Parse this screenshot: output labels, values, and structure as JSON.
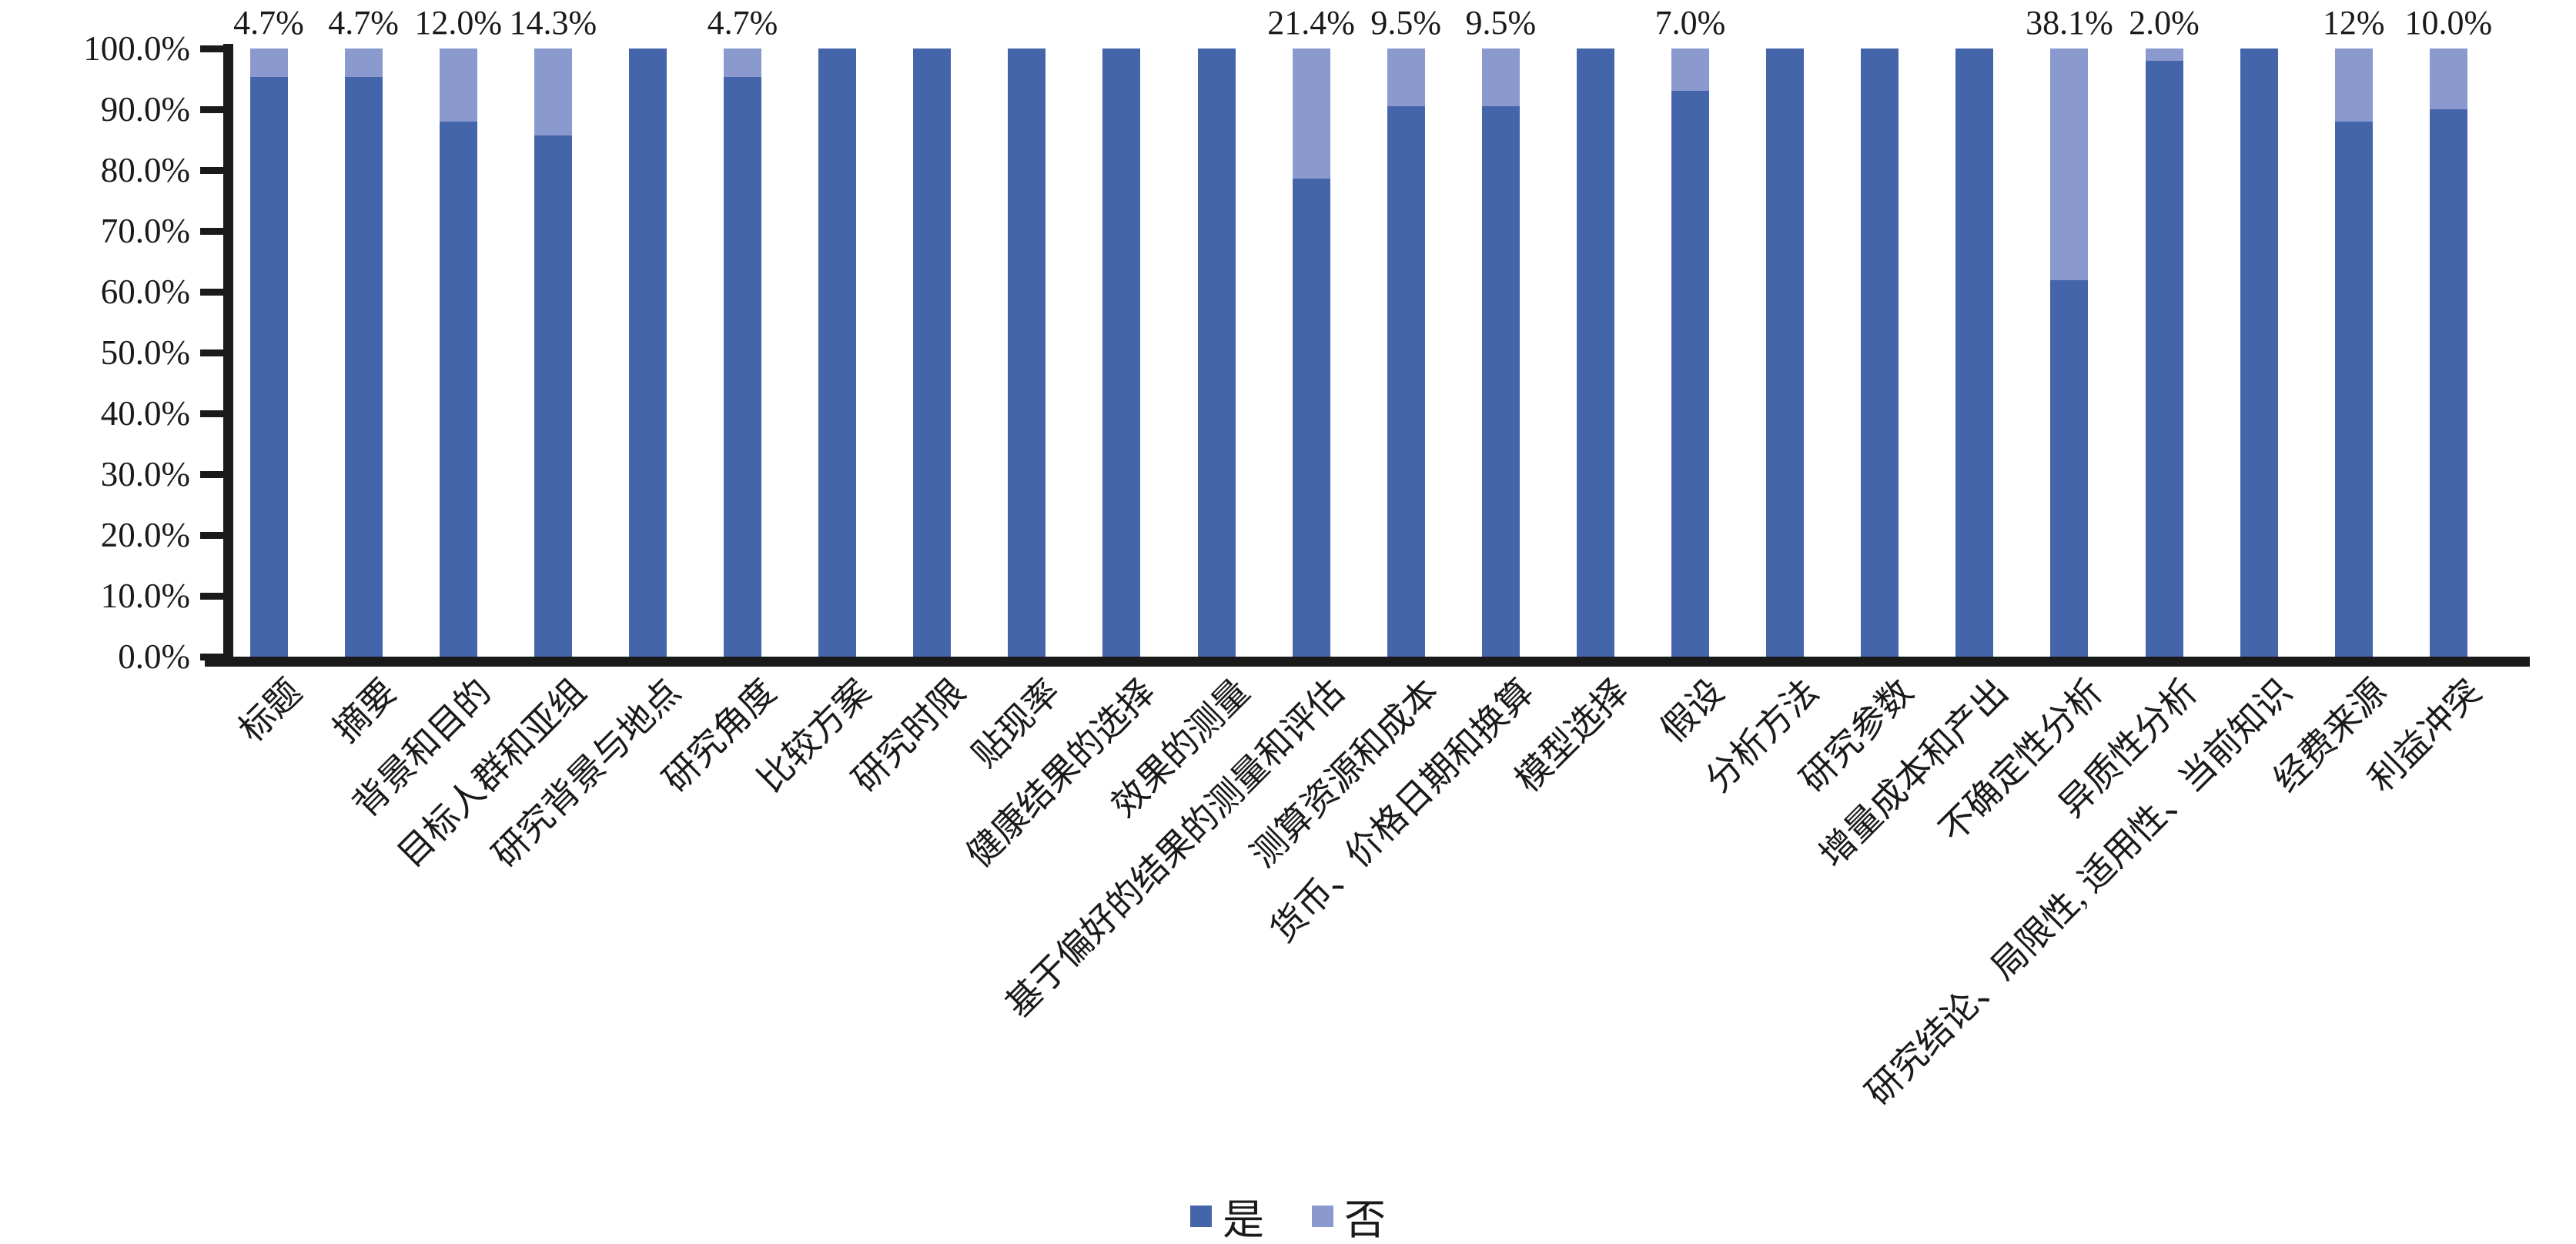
{
  "chart_data": {
    "type": "bar",
    "subtype": "stacked-100-percent-column",
    "title": "",
    "xlabel": "",
    "ylabel": "",
    "ylim": [
      0,
      100
    ],
    "grid": false,
    "legend_position": "bottom-center",
    "categories": [
      "标题",
      "摘要",
      "背景和目的",
      "目标人群和亚组",
      "研究背景与地点",
      "研究角度",
      "比较方案",
      "研究时限",
      "贴现率",
      "健康结果的选择",
      "效果的测量",
      "基于偏好的结果的测量和评估",
      "测算资源和成本",
      "货币、价格日期和换算",
      "模型选择",
      "假设",
      "分析方法",
      "研究参数",
      "增量成本和产出",
      "不确定性分析",
      "异质性分析",
      "研究结论、局限性, 适用性、当前知识",
      "经费来源",
      "利益冲突"
    ],
    "series": [
      {
        "name": "是",
        "color": "#4565AB",
        "values": [
          95.3,
          95.3,
          88.0,
          85.7,
          100,
          95.3,
          100,
          100,
          100,
          100,
          100,
          78.6,
          90.5,
          90.5,
          100,
          93.0,
          100,
          100,
          100,
          61.9,
          98.0,
          100,
          88.0,
          90.0
        ]
      },
      {
        "name": "否",
        "color": "#8A99CE",
        "values": [
          4.7,
          4.7,
          12.0,
          14.3,
          0,
          4.7,
          0,
          0,
          0,
          0,
          0,
          21.4,
          9.5,
          9.5,
          0,
          7.0,
          0,
          0,
          0,
          38.1,
          2.0,
          0,
          12.0,
          10.0
        ]
      }
    ],
    "bar_top_labels": [
      "4.7%",
      "4.7%",
      "12.0%",
      "14.3%",
      "",
      "4.7%",
      "",
      "",
      "",
      "",
      "",
      "21.4%",
      "9.5%",
      "9.5%",
      "",
      "7.0%",
      "",
      "",
      "",
      "38.1%",
      "2.0%",
      "",
      "12%",
      "10.0%"
    ],
    "y_axis_ticks": [
      "100.0%",
      "90.0%",
      "80.0%",
      "70.0%",
      "60.0%",
      "50.0%",
      "40.0%",
      "30.0%",
      "20.0%",
      "10.0%",
      "0.0%"
    ],
    "legend": {
      "items": [
        {
          "label": "是",
          "color": "#4565AB"
        },
        {
          "label": "否",
          "color": "#8A99CE"
        }
      ]
    },
    "axis_color": "#1a1a1a"
  }
}
